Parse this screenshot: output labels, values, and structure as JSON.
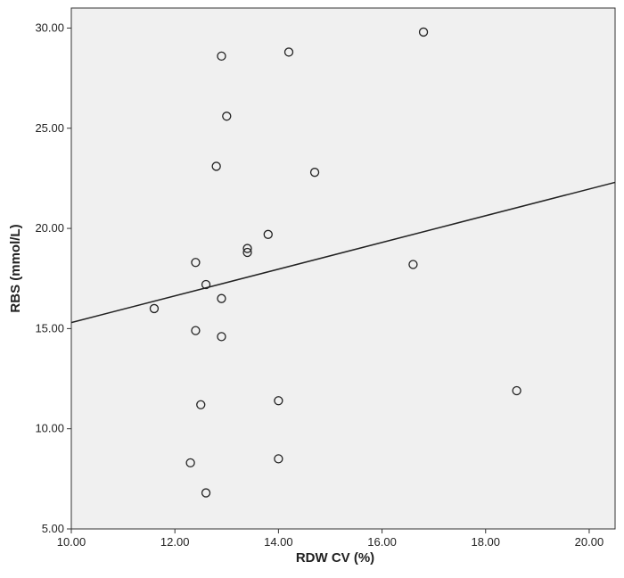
{
  "chart_data": {
    "type": "scatter",
    "xlabel": "RDW CV (%)",
    "ylabel": "RBS (mmol/L)",
    "xlim": [
      10.0,
      20.5
    ],
    "ylim": [
      5.0,
      31.0
    ],
    "x_ticks": [
      "10.00",
      "12.00",
      "14.00",
      "16.00",
      "18.00",
      "20.00"
    ],
    "y_ticks": [
      "5.00",
      "10.00",
      "15.00",
      "20.00",
      "25.00",
      "30.00"
    ],
    "grid": false,
    "plot_background": "#f0f0f0",
    "point_color": "#222222",
    "points": [
      {
        "x": 16.8,
        "y": 29.8
      },
      {
        "x": 14.2,
        "y": 28.8
      },
      {
        "x": 12.9,
        "y": 28.6
      },
      {
        "x": 13.0,
        "y": 25.6
      },
      {
        "x": 12.8,
        "y": 23.1
      },
      {
        "x": 14.7,
        "y": 22.8
      },
      {
        "x": 13.8,
        "y": 19.7
      },
      {
        "x": 13.4,
        "y": 19.0
      },
      {
        "x": 13.4,
        "y": 18.8
      },
      {
        "x": 12.4,
        "y": 18.3
      },
      {
        "x": 16.6,
        "y": 18.2
      },
      {
        "x": 12.6,
        "y": 17.2
      },
      {
        "x": 12.9,
        "y": 16.5
      },
      {
        "x": 11.6,
        "y": 16.0
      },
      {
        "x": 12.4,
        "y": 14.9
      },
      {
        "x": 12.9,
        "y": 14.6
      },
      {
        "x": 18.6,
        "y": 11.9
      },
      {
        "x": 14.0,
        "y": 11.4
      },
      {
        "x": 12.5,
        "y": 11.2
      },
      {
        "x": 14.0,
        "y": 8.5
      },
      {
        "x": 12.3,
        "y": 8.3
      },
      {
        "x": 12.6,
        "y": 6.8
      }
    ],
    "fit_line": {
      "x": [
        10.0,
        20.5
      ],
      "y": [
        15.3,
        22.3
      ]
    }
  }
}
